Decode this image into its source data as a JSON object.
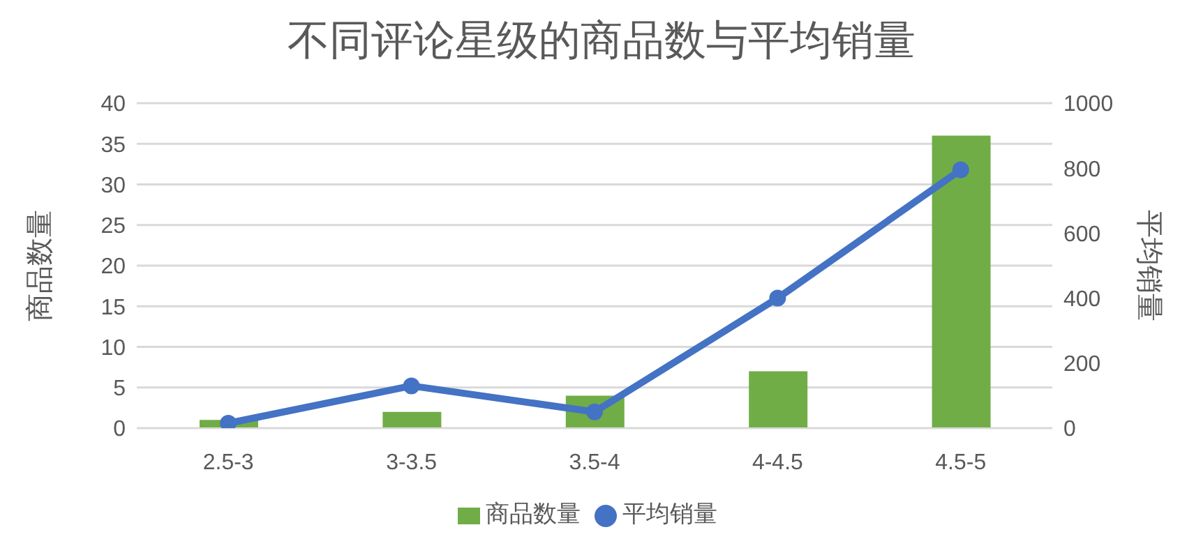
{
  "chart_data": {
    "type": "bar",
    "title": "不同评论星级的商品数与平均销量",
    "ylabel": "商品数量",
    "y2label": "平均销量",
    "categories": [
      "2.5-3",
      "3-3.5",
      "3.5-4",
      "4-4.5",
      "4.5-5"
    ],
    "series": [
      {
        "name": "商品数量",
        "color": "#70ad47",
        "values": [
          1,
          2,
          4,
          7,
          36
        ]
      },
      {
        "name": "平均销量",
        "type": "line",
        "axis": "y2",
        "color": "#4472c4",
        "values": [
          15,
          130,
          50,
          400,
          795
        ]
      }
    ],
    "ylim": [
      0,
      40
    ],
    "yticks": [
      0,
      5,
      10,
      15,
      20,
      25,
      30,
      35,
      40
    ],
    "y2lim": [
      0,
      1000
    ],
    "y2ticks": [
      0,
      200,
      400,
      600,
      800,
      1000
    ],
    "grid": "y",
    "legend": "bottom",
    "marker": "circle"
  }
}
